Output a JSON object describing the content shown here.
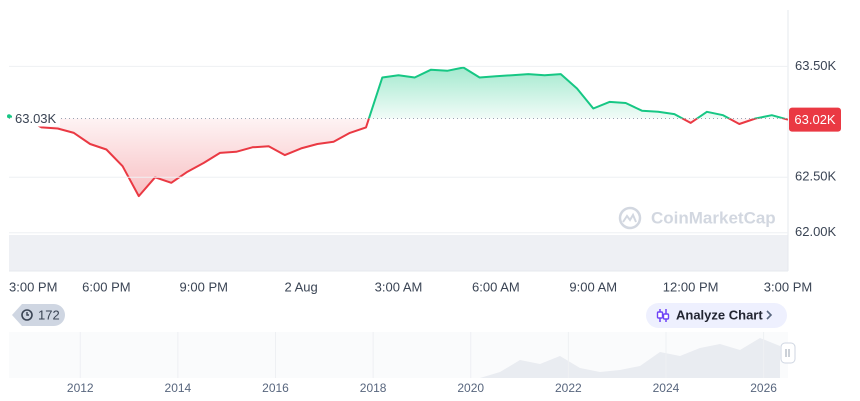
{
  "chart_data": {
    "type": "line",
    "x": [
      0,
      0.5,
      1,
      1.5,
      2,
      2.5,
      3,
      3.5,
      4,
      4.5,
      5,
      5.5,
      6,
      6.5,
      7,
      7.5,
      8,
      8.5,
      9,
      9.5,
      10,
      10.5,
      11,
      11.5,
      12,
      12.5,
      13,
      13.5,
      14,
      14.5,
      15,
      15.5,
      16,
      16.5,
      17,
      17.5,
      18,
      18.5,
      19,
      19.5,
      20,
      20.5,
      21,
      21.5,
      22,
      22.5,
      23,
      23.5,
      24
    ],
    "series": [
      {
        "values": [
          63050,
          63030,
          62950,
          62940,
          62900,
          62800,
          62750,
          62600,
          62330,
          62500,
          62450,
          62550,
          62630,
          62720,
          62730,
          62770,
          62780,
          62700,
          62760,
          62800,
          62820,
          62900,
          62950,
          63400,
          63420,
          63400,
          63470,
          63460,
          63490,
          63400,
          63410,
          63420,
          63430,
          63420,
          63430,
          63300,
          63120,
          63180,
          63170,
          63100,
          63090,
          63070,
          62990,
          63090,
          63060,
          62980,
          63030,
          63060,
          63020
        ]
      }
    ],
    "up_color": "#16c784",
    "down_color": "#ea3943",
    "reference_line": {
      "value": 63030,
      "label": "63.03K"
    },
    "current_price": {
      "value": 63020,
      "label": "63.02K"
    },
    "xlim": [
      0,
      24
    ],
    "xticks": [
      {
        "value": 0,
        "label": "3:00 PM"
      },
      {
        "value": 3,
        "label": "6:00 PM"
      },
      {
        "value": 6,
        "label": "9:00 PM"
      },
      {
        "value": 9,
        "label": "2 Aug"
      },
      {
        "value": 12,
        "label": "3:00 AM"
      },
      {
        "value": 15,
        "label": "6:00 AM"
      },
      {
        "value": 18,
        "label": "9:00 AM"
      },
      {
        "value": 21,
        "label": "12:00 PM"
      },
      {
        "value": 24,
        "label": "3:00 PM"
      }
    ],
    "ylim": [
      61700,
      63900
    ],
    "yticks": [
      {
        "value": 63500,
        "label": "63.50K"
      },
      {
        "value": 62500,
        "label": "62.50K"
      },
      {
        "value": 62000,
        "label": "62.00K"
      }
    ],
    "grid": true
  },
  "watermark": "CoinMarketCap",
  "history_badge": 172,
  "analyze_button": "Analyze Chart",
  "navigator": {
    "xlim": [
      2010.54,
      2026.5
    ],
    "xticks": [
      2012,
      2014,
      2016,
      2018,
      2020,
      2022,
      2024,
      2026
    ]
  }
}
